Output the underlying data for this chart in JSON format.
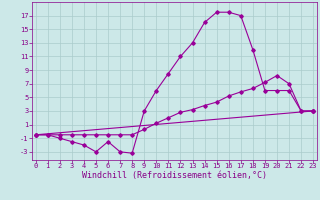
{
  "bg_color": "#cce8e8",
  "grid_color": "#aacccc",
  "line_color": "#990099",
  "xlabel": "Windchill (Refroidissement éolien,°C)",
  "xlabel_color": "#880088",
  "yticks": [
    -3,
    -1,
    1,
    3,
    5,
    7,
    9,
    11,
    13,
    15,
    17
  ],
  "xticks": [
    0,
    1,
    2,
    3,
    4,
    5,
    6,
    7,
    8,
    9,
    10,
    11,
    12,
    13,
    14,
    15,
    16,
    17,
    18,
    19,
    20,
    21,
    22,
    23
  ],
  "ylim": [
    -4.2,
    19.0
  ],
  "xlim": [
    -0.3,
    23.3
  ],
  "line1_x": [
    0,
    1,
    2,
    3,
    4,
    5,
    6,
    7,
    8,
    9,
    10,
    11,
    12,
    13,
    14,
    15,
    16,
    17,
    18,
    19,
    20,
    21,
    22,
    23
  ],
  "line1_y": [
    -0.5,
    -0.5,
    -1.0,
    -1.5,
    -2.0,
    -3.0,
    -1.5,
    -3.0,
    -3.2,
    3.0,
    6.0,
    8.5,
    11.0,
    13.0,
    16.0,
    17.5,
    17.5,
    17.0,
    12.0,
    6.0,
    6.0,
    6.0,
    3.0,
    3.0
  ],
  "line2_x": [
    0,
    1,
    2,
    3,
    4,
    5,
    6,
    7,
    8,
    9,
    10,
    11,
    12,
    13,
    14,
    15,
    16,
    17,
    18,
    19,
    20,
    21,
    22,
    23
  ],
  "line2_y": [
    -0.5,
    -0.5,
    -0.5,
    -0.5,
    -0.5,
    -0.5,
    -0.5,
    -0.5,
    -0.5,
    0.3,
    1.2,
    2.0,
    2.8,
    3.2,
    3.8,
    4.3,
    5.2,
    5.8,
    6.3,
    7.2,
    8.2,
    7.0,
    3.0,
    3.0
  ],
  "line3_x": [
    0,
    23
  ],
  "line3_y": [
    -0.5,
    3.0
  ],
  "marker": "D",
  "markersize": 1.8,
  "linewidth": 0.8,
  "tick_fontsize": 5.0,
  "xlabel_fontsize": 6.0,
  "tick_color": "#880088"
}
